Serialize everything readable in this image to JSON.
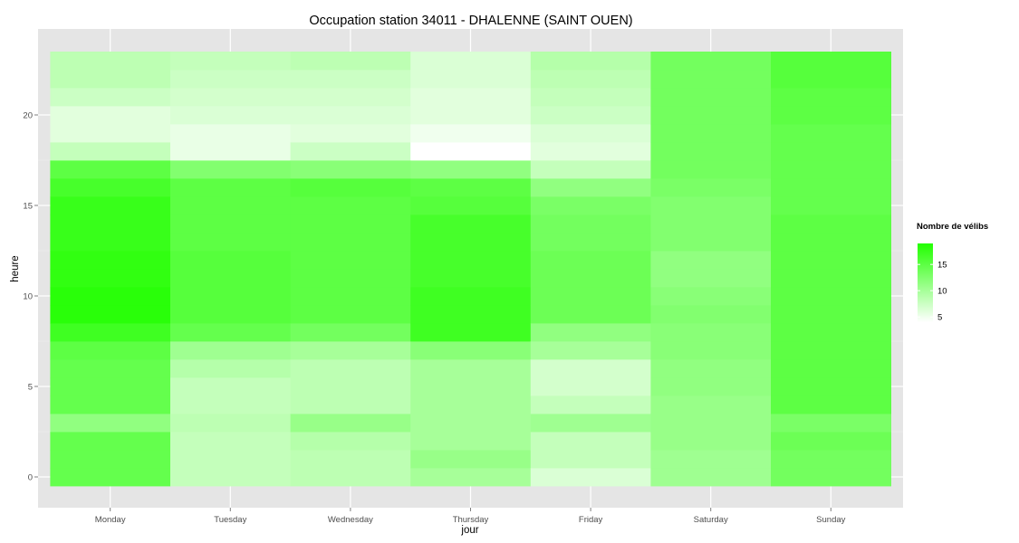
{
  "chart_data": {
    "type": "heatmap",
    "title": "Occupation station 34011 - DHALENNE (SAINT OUEN)",
    "xlabel": "jour",
    "ylabel": "heure",
    "x_categories": [
      "Monday",
      "Tuesday",
      "Wednesday",
      "Thursday",
      "Friday",
      "Saturday",
      "Sunday"
    ],
    "y_hours": [
      0,
      1,
      2,
      3,
      4,
      5,
      6,
      7,
      8,
      9,
      10,
      11,
      12,
      13,
      14,
      15,
      16,
      17,
      18,
      19,
      20,
      21,
      22,
      23
    ],
    "y_ticks": [
      0,
      5,
      10,
      15,
      20
    ],
    "ylim": [
      -0.5,
      23.5
    ],
    "grid": true,
    "legend": {
      "title": "Nombre de vélibs",
      "ticks": [
        5,
        10,
        15
      ],
      "position": "right",
      "range": [
        4,
        19
      ],
      "color_low": "#ffffff",
      "color_high": "#22ff00"
    },
    "values": [
      [
        14.5,
        14.5,
        14.5,
        11.5,
        14.5,
        14.5,
        14.5,
        15.0,
        17.0,
        18.5,
        18.5,
        18.0,
        18.0,
        17.5,
        17.5,
        17.5,
        16.5,
        15.0,
        8.0,
        6.0,
        6.0,
        7.5,
        8.5,
        8.5
      ],
      [
        8.0,
        8.0,
        8.0,
        8.5,
        8.0,
        8.0,
        9.0,
        10.5,
        14.5,
        15.5,
        15.5,
        15.5,
        15.5,
        15.0,
        15.0,
        15.0,
        15.0,
        12.5,
        5.5,
        5.5,
        6.5,
        7.0,
        7.5,
        8.0
      ],
      [
        8.5,
        8.5,
        9.0,
        11.0,
        8.5,
        8.5,
        8.5,
        10.0,
        13.5,
        15.0,
        15.0,
        15.0,
        15.0,
        15.0,
        15.0,
        15.0,
        15.5,
        12.0,
        7.5,
        6.0,
        6.5,
        7.0,
        7.5,
        8.5
      ],
      [
        10.0,
        11.0,
        10.0,
        10.0,
        10.0,
        10.0,
        10.0,
        12.0,
        17.0,
        17.0,
        17.0,
        16.5,
        16.5,
        16.5,
        16.5,
        15.5,
        15.0,
        11.5,
        4.0,
        5.0,
        6.0,
        6.0,
        6.5,
        6.5
      ],
      [
        6.5,
        8.0,
        8.0,
        10.5,
        8.0,
        7.0,
        7.0,
        10.0,
        11.5,
        14.0,
        14.0,
        14.0,
        14.0,
        13.5,
        13.5,
        13.0,
        11.5,
        8.0,
        6.0,
        6.5,
        7.5,
        8.0,
        8.5,
        9.0
      ],
      [
        10.5,
        10.5,
        11.0,
        11.0,
        11.0,
        11.5,
        11.5,
        12.0,
        12.0,
        12.5,
        12.0,
        11.5,
        11.5,
        12.5,
        12.5,
        12.5,
        13.0,
        13.5,
        13.5,
        13.5,
        13.5,
        13.5,
        13.5,
        13.5
      ],
      [
        13.5,
        13.5,
        14.0,
        13.0,
        15.0,
        15.0,
        15.0,
        15.0,
        15.0,
        15.0,
        15.0,
        15.0,
        15.0,
        15.0,
        15.0,
        14.5,
        14.5,
        14.5,
        14.5,
        14.5,
        15.0,
        15.0,
        15.5,
        15.5
      ]
    ]
  }
}
